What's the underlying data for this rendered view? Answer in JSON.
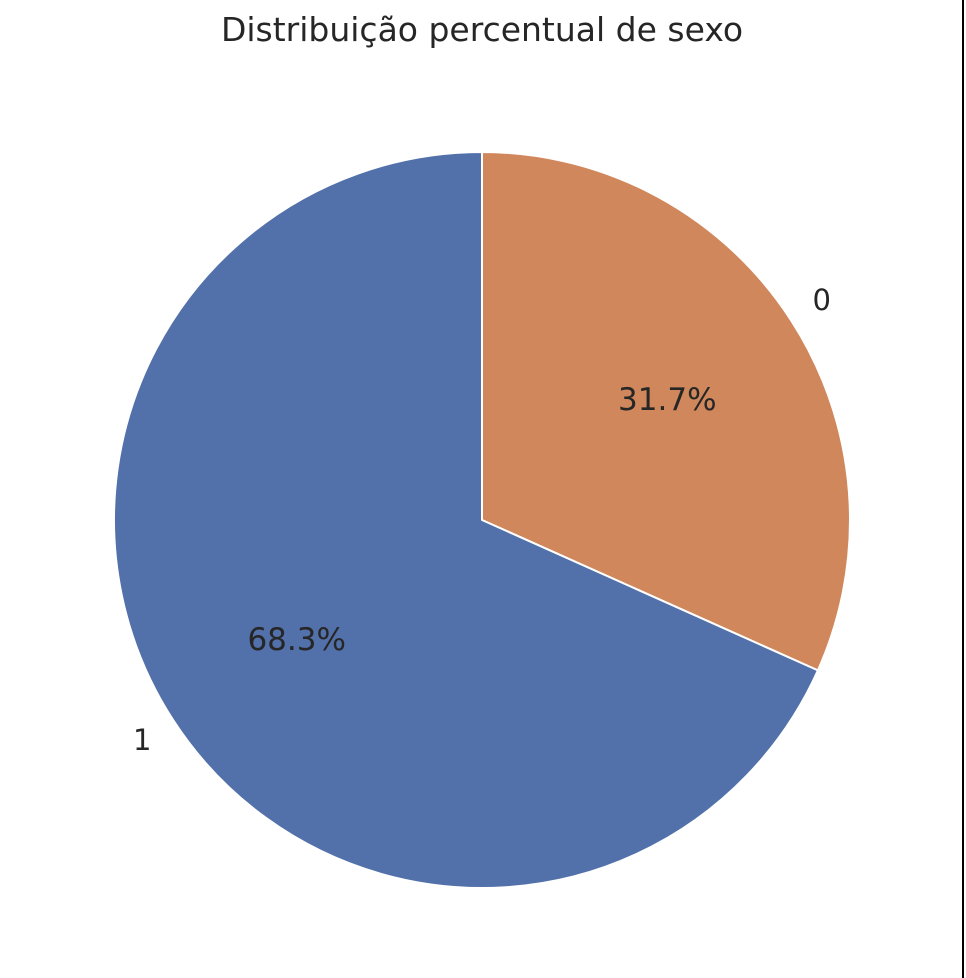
{
  "chart_data": {
    "type": "pie",
    "title": "Distribuição percentual de sexo",
    "slices": [
      {
        "label": "0",
        "value": 31.7,
        "pct_label": "31.7%",
        "color": "#d0875c"
      },
      {
        "label": "1",
        "value": 68.3,
        "pct_label": "68.3%",
        "color": "#5270aa"
      }
    ],
    "start_angle_deg": 90,
    "direction": "clockwise",
    "edge_color": "#ffffff",
    "legend": "none"
  }
}
